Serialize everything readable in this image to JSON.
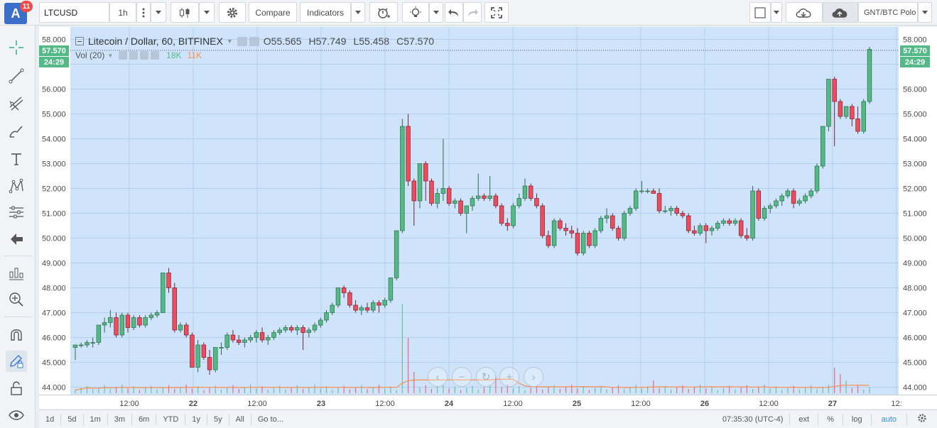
{
  "notification_count": "11",
  "avatar_letter": "A",
  "toolbar": {
    "symbol": "LTCUSD",
    "interval": "1h",
    "compare_label": "Compare",
    "indicators_label": "Indicators",
    "pair_label": "GNT/BTC Polo"
  },
  "legend": {
    "title": "Litecoin / Dollar, 60, BITFINEX",
    "open_label": "O",
    "open": "55.565",
    "high_label": "H",
    "high": "57.749",
    "low_label": "L",
    "low": "55.458",
    "close_label": "C",
    "close": "57.570",
    "vol_label": "Vol (20)",
    "vol_a": "18K",
    "vol_b": "11K"
  },
  "price_tag": {
    "last": "57.570",
    "countdown": "24:29"
  },
  "time_ranges": [
    "1d",
    "5d",
    "1m",
    "3m",
    "6m",
    "YTD",
    "1y",
    "5y",
    "All"
  ],
  "goto_label": "Go to...",
  "clock": "07:35:30 (UTC-4)",
  "bottom_options": [
    "ext",
    "%",
    "log",
    "auto"
  ],
  "colors": {
    "up": "#53b987",
    "up_border": "#2e6b4a",
    "down": "#eb4d5c",
    "down_border": "#7a2130",
    "chart_bg": "#cfe4fb",
    "grid": "#b3cfee",
    "ma": "#ff8d4d"
  },
  "chart_data": {
    "type": "candlestick",
    "title": "Litecoin / Dollar, 60, BITFINEX",
    "y_ticks": [
      "58.000",
      "57.000",
      "56.000",
      "55.000",
      "54.000",
      "53.000",
      "52.000",
      "51.000",
      "50.000",
      "49.000",
      "48.000",
      "47.000",
      "46.000",
      "45.000",
      "44.000"
    ],
    "x_ticks": [
      "12:00",
      "22",
      "12:00",
      "23",
      "12:00",
      "24",
      "12:00",
      "25",
      "12:00",
      "26",
      "12:00",
      "27",
      "12:"
    ],
    "x_ticks_bold": [
      false,
      true,
      false,
      true,
      false,
      true,
      false,
      true,
      false,
      true,
      false,
      true,
      false
    ],
    "ylim": [
      43.7,
      58.5
    ],
    "candles": [
      [
        45.6,
        45.7,
        45.1,
        45.7
      ],
      [
        45.7,
        45.8,
        45.6,
        45.7
      ],
      [
        45.7,
        45.9,
        45.6,
        45.8
      ],
      [
        45.8,
        46.0,
        45.6,
        45.8
      ],
      [
        45.8,
        46.5,
        45.7,
        46.5
      ],
      [
        46.5,
        46.8,
        46.2,
        46.6
      ],
      [
        46.6,
        47.1,
        46.4,
        46.8
      ],
      [
        46.8,
        47.0,
        46.0,
        46.1
      ],
      [
        46.1,
        47.0,
        46.0,
        46.9
      ],
      [
        46.9,
        47.0,
        46.2,
        46.4
      ],
      [
        46.4,
        46.9,
        46.3,
        46.8
      ],
      [
        46.8,
        46.9,
        46.4,
        46.5
      ],
      [
        46.5,
        46.9,
        46.4,
        46.8
      ],
      [
        46.8,
        47.0,
        46.7,
        46.9
      ],
      [
        46.9,
        47.1,
        46.8,
        47.0
      ],
      [
        47.0,
        48.6,
        47.0,
        48.6
      ],
      [
        48.6,
        48.8,
        47.8,
        48.0
      ],
      [
        48.0,
        48.2,
        46.2,
        46.3
      ],
      [
        46.3,
        46.6,
        46.2,
        46.5
      ],
      [
        46.5,
        46.6,
        46.0,
        46.1
      ],
      [
        46.1,
        46.2,
        44.8,
        44.8
      ],
      [
        44.8,
        45.9,
        44.6,
        45.7
      ],
      [
        45.7,
        45.8,
        45.1,
        45.2
      ],
      [
        45.2,
        45.5,
        44.5,
        44.7
      ],
      [
        44.7,
        45.6,
        44.6,
        45.6
      ],
      [
        45.6,
        45.8,
        45.3,
        45.6
      ],
      [
        45.6,
        46.2,
        45.5,
        46.1
      ],
      [
        46.1,
        46.3,
        45.8,
        45.9
      ],
      [
        45.9,
        46.1,
        45.7,
        45.8
      ],
      [
        45.8,
        46.0,
        45.6,
        45.9
      ],
      [
        45.9,
        46.1,
        45.8,
        46.0
      ],
      [
        46.0,
        46.3,
        45.8,
        46.2
      ],
      [
        46.2,
        46.4,
        45.8,
        45.9
      ],
      [
        45.9,
        46.1,
        45.7,
        46.0
      ],
      [
        46.0,
        46.3,
        45.9,
        46.2
      ],
      [
        46.2,
        46.4,
        46.1,
        46.3
      ],
      [
        46.3,
        46.5,
        46.2,
        46.4
      ],
      [
        46.4,
        46.5,
        46.2,
        46.3
      ],
      [
        46.3,
        46.5,
        46.1,
        46.4
      ],
      [
        46.4,
        46.5,
        45.5,
        46.2
      ],
      [
        46.2,
        46.4,
        46.0,
        46.3
      ],
      [
        46.3,
        46.6,
        46.2,
        46.5
      ],
      [
        46.5,
        46.8,
        46.4,
        46.7
      ],
      [
        46.7,
        47.1,
        46.6,
        47.0
      ],
      [
        47.0,
        47.4,
        46.9,
        47.3
      ],
      [
        47.3,
        48.0,
        47.2,
        48.0
      ],
      [
        48.0,
        48.1,
        47.6,
        47.8
      ],
      [
        47.8,
        47.9,
        47.2,
        47.3
      ],
      [
        47.3,
        47.5,
        47.0,
        47.1
      ],
      [
        47.1,
        47.3,
        46.9,
        47.2
      ],
      [
        47.2,
        47.4,
        47.0,
        47.1
      ],
      [
        47.1,
        47.5,
        47.0,
        47.4
      ],
      [
        47.4,
        47.5,
        47.0,
        47.3
      ],
      [
        47.3,
        47.6,
        47.2,
        47.5
      ],
      [
        47.5,
        48.4,
        47.4,
        48.4
      ],
      [
        48.4,
        50.3,
        48.3,
        50.3
      ],
      [
        50.3,
        54.8,
        50.2,
        54.5
      ],
      [
        54.5,
        55.0,
        52.1,
        52.3
      ],
      [
        52.3,
        52.4,
        50.5,
        51.5
      ],
      [
        51.5,
        53.0,
        51.2,
        53.0
      ],
      [
        53.0,
        53.1,
        51.5,
        52.3
      ],
      [
        52.3,
        52.4,
        51.3,
        51.4
      ],
      [
        51.4,
        52.0,
        51.2,
        51.8
      ],
      [
        51.8,
        54.0,
        51.5,
        52.0
      ],
      [
        52.0,
        52.1,
        51.3,
        51.4
      ],
      [
        51.4,
        51.6,
        51.2,
        51.5
      ],
      [
        51.5,
        51.6,
        50.9,
        51.0
      ],
      [
        51.0,
        51.2,
        50.2,
        51.3
      ],
      [
        51.3,
        51.7,
        51.1,
        51.6
      ],
      [
        51.6,
        52.6,
        51.5,
        51.7
      ],
      [
        51.7,
        51.8,
        51.5,
        51.6
      ],
      [
        51.6,
        52.5,
        51.5,
        51.7
      ],
      [
        51.7,
        51.8,
        51.2,
        51.3
      ],
      [
        51.3,
        51.4,
        50.5,
        50.6
      ],
      [
        50.6,
        50.8,
        50.3,
        50.5
      ],
      [
        50.5,
        51.4,
        50.4,
        51.3
      ],
      [
        51.3,
        51.8,
        51.2,
        51.6
      ],
      [
        51.6,
        52.4,
        51.5,
        52.1
      ],
      [
        52.1,
        52.2,
        51.5,
        51.6
      ],
      [
        51.6,
        51.8,
        51.2,
        51.3
      ],
      [
        51.3,
        51.4,
        50.0,
        50.1
      ],
      [
        50.1,
        50.3,
        49.6,
        49.7
      ],
      [
        49.7,
        50.8,
        49.6,
        50.7
      ],
      [
        50.7,
        50.8,
        50.3,
        50.4
      ],
      [
        50.4,
        50.6,
        50.1,
        50.3
      ],
      [
        50.3,
        50.5,
        50.0,
        50.2
      ],
      [
        50.2,
        50.4,
        49.3,
        49.4
      ],
      [
        49.4,
        50.3,
        49.3,
        50.2
      ],
      [
        50.2,
        50.3,
        49.6,
        49.7
      ],
      [
        49.7,
        50.4,
        49.6,
        50.3
      ],
      [
        50.3,
        50.9,
        50.2,
        50.8
      ],
      [
        50.8,
        51.2,
        50.6,
        50.9
      ],
      [
        50.9,
        51.0,
        50.3,
        50.4
      ],
      [
        50.4,
        50.5,
        49.9,
        50.0
      ],
      [
        50.0,
        51.1,
        49.9,
        51.0
      ],
      [
        51.0,
        51.3,
        50.9,
        51.2
      ],
      [
        51.2,
        52.0,
        51.1,
        51.9
      ],
      [
        51.9,
        52.3,
        51.8,
        51.9
      ],
      [
        51.9,
        52.0,
        51.8,
        51.9
      ],
      [
        51.9,
        52.0,
        51.8,
        51.8
      ],
      [
        51.8,
        52.0,
        51.0,
        51.1
      ],
      [
        51.1,
        51.3,
        51.0,
        51.1
      ],
      [
        51.1,
        51.3,
        50.9,
        51.2
      ],
      [
        51.2,
        51.3,
        50.9,
        51.0
      ],
      [
        51.0,
        51.1,
        50.8,
        50.9
      ],
      [
        50.9,
        51.0,
        50.2,
        50.3
      ],
      [
        50.3,
        50.5,
        50.1,
        50.2
      ],
      [
        50.2,
        50.6,
        50.1,
        50.5
      ],
      [
        50.5,
        50.6,
        49.8,
        50.3
      ],
      [
        50.3,
        50.5,
        50.1,
        50.4
      ],
      [
        50.4,
        50.7,
        50.3,
        50.6
      ],
      [
        50.6,
        50.8,
        50.5,
        50.7
      ],
      [
        50.7,
        50.8,
        50.5,
        50.6
      ],
      [
        50.6,
        50.8,
        50.5,
        50.7
      ],
      [
        50.7,
        50.8,
        50.0,
        50.1
      ],
      [
        50.1,
        50.4,
        49.9,
        50.0
      ],
      [
        50.0,
        52.1,
        49.9,
        51.9
      ],
      [
        51.9,
        52.0,
        50.7,
        50.8
      ],
      [
        50.8,
        51.3,
        50.7,
        51.2
      ],
      [
        51.2,
        51.4,
        51.0,
        51.3
      ],
      [
        51.3,
        51.6,
        51.2,
        51.5
      ],
      [
        51.5,
        51.8,
        51.3,
        51.7
      ],
      [
        51.7,
        52.0,
        51.6,
        51.9
      ],
      [
        51.9,
        52.0,
        51.2,
        51.4
      ],
      [
        51.4,
        51.6,
        51.3,
        51.5
      ],
      [
        51.5,
        51.8,
        51.4,
        51.7
      ],
      [
        51.7,
        52.0,
        51.6,
        51.9
      ],
      [
        51.9,
        53.0,
        51.8,
        52.9
      ],
      [
        52.9,
        54.5,
        52.8,
        54.5
      ],
      [
        54.5,
        56.4,
        54.3,
        56.4
      ],
      [
        56.4,
        56.5,
        53.7,
        55.5
      ],
      [
        55.5,
        55.6,
        54.8,
        54.9
      ],
      [
        54.9,
        55.3,
        54.8,
        55.3
      ],
      [
        55.3,
        55.4,
        54.5,
        54.8
      ],
      [
        54.8,
        55.3,
        54.2,
        54.3
      ],
      [
        54.3,
        55.6,
        54.2,
        55.5
      ],
      [
        55.5,
        57.7,
        55.4,
        57.6
      ]
    ],
    "volume_spikes": [
      [
        56,
        4.2
      ],
      [
        57,
        2.6
      ],
      [
        58,
        1.0
      ],
      [
        72,
        0.8
      ],
      [
        99,
        0.6
      ],
      [
        130,
        1.2
      ],
      [
        131,
        0.9
      ],
      [
        132,
        0.6
      ]
    ],
    "volume_note": "Vol (20)"
  }
}
